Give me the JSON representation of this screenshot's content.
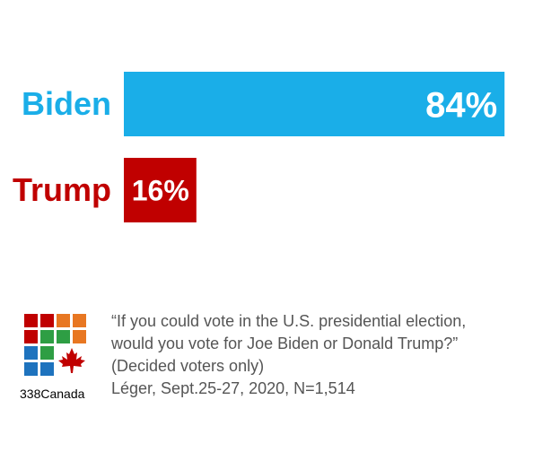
{
  "chart_data": {
    "type": "bar",
    "orientation": "horizontal",
    "categories": [
      "Biden",
      "Trump"
    ],
    "values": [
      84,
      16
    ],
    "value_labels": [
      "84%",
      "16%"
    ],
    "colors": [
      "#1AAEE8",
      "#C00000"
    ],
    "xlim": [
      0,
      100
    ],
    "title": "",
    "xlabel": "",
    "ylabel": "",
    "grid": false
  },
  "logo": {
    "text": "338Canada",
    "colors": [
      "#C00000",
      "#2E9E44",
      "#E87722",
      "#1E73BE"
    ]
  },
  "footnote": {
    "question_line1": "“If you could vote in the U.S. presidential election,",
    "question_line2": "would you vote for Joe Biden or Donald Trump?”",
    "note": "(Decided voters only)",
    "source": "Léger, Sept.25-27, 2020, N=1,514"
  }
}
